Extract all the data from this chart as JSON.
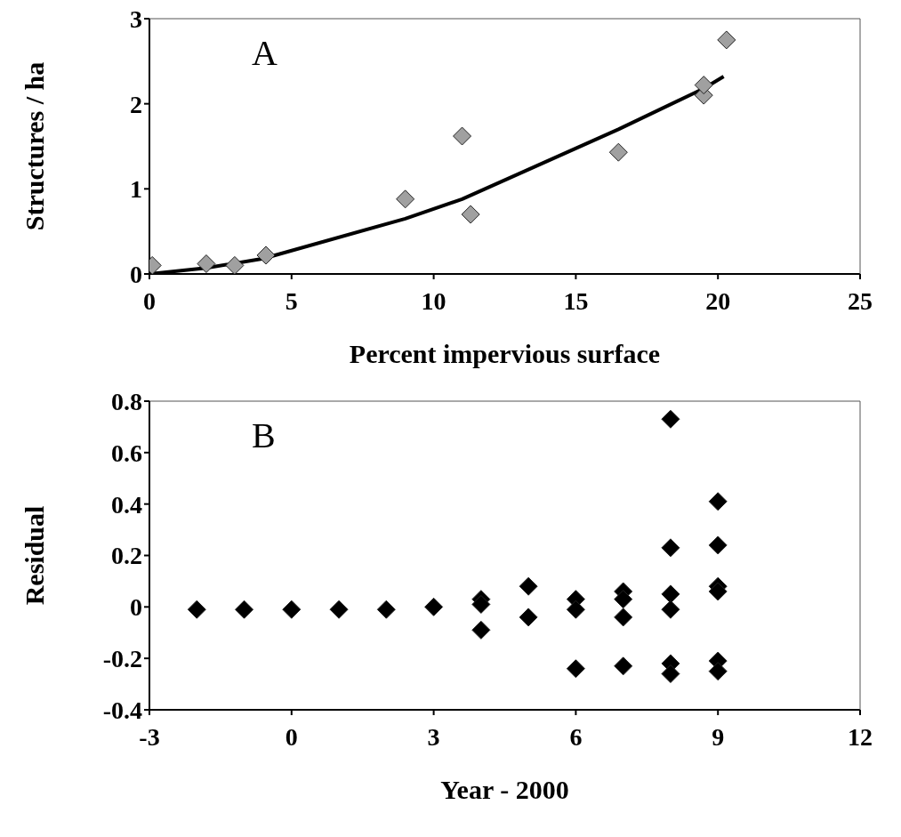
{
  "chart_data": [
    {
      "type": "scatter",
      "xlabel": "Percent impervious surface",
      "ylabel": "Structures / ha",
      "annotations": [
        "A"
      ],
      "xlim": [
        0,
        25
      ],
      "xticks": [
        0,
        5,
        10,
        15,
        20,
        25
      ],
      "ylim": [
        0,
        3
      ],
      "yticks": [
        0,
        1,
        2,
        3
      ],
      "grid": false,
      "legend": false,
      "marker": "diamond",
      "series": [
        {
          "color": "#a0a0a0",
          "x": [
            0.1,
            2,
            3,
            4.1,
            9,
            11,
            11.3,
            16.5,
            19.5,
            19.5,
            20.3
          ],
          "values": [
            0.1,
            0.12,
            0.1,
            0.22,
            0.88,
            1.62,
            0.7,
            1.43,
            2.1,
            2.22,
            2.75
          ]
        },
        {
          "type": "line",
          "color": "#000000",
          "marker": "none",
          "line_style": "solid",
          "x": [
            0,
            2,
            4,
            9,
            11,
            16.5,
            19.5,
            20.2
          ],
          "values": [
            0,
            0.07,
            0.18,
            0.65,
            0.88,
            1.7,
            2.18,
            2.32
          ]
        }
      ]
    },
    {
      "type": "scatter",
      "xlabel": "Year - 2000",
      "ylabel": "Residual",
      "annotations": [
        "B"
      ],
      "xlim": [
        -3,
        12
      ],
      "xticks": [
        -3,
        0,
        3,
        6,
        9,
        12
      ],
      "ylim": [
        -0.4,
        0.8
      ],
      "yticks": [
        -0.4,
        -0.2,
        0,
        0.2,
        0.4,
        0.6,
        0.8
      ],
      "grid": false,
      "legend": false,
      "marker": "diamond",
      "series": [
        {
          "color": "#000000",
          "x": [
            -2,
            -1,
            0,
            1,
            2,
            3,
            4,
            4,
            4,
            5,
            5,
            6,
            6,
            6,
            7,
            7,
            7,
            7,
            8,
            8,
            8,
            8,
            8,
            8,
            9,
            9,
            9,
            9,
            9,
            9
          ],
          "values": [
            -0.01,
            -0.01,
            -0.01,
            -0.01,
            -0.01,
            0,
            0.03,
            0.01,
            -0.09,
            0.08,
            -0.04,
            0.03,
            -0.01,
            -0.24,
            0.06,
            0.03,
            -0.04,
            -0.23,
            0.73,
            0.23,
            0.05,
            -0.01,
            -0.22,
            -0.26,
            0.41,
            0.24,
            0.08,
            0.06,
            -0.21,
            -0.25
          ]
        }
      ]
    }
  ]
}
